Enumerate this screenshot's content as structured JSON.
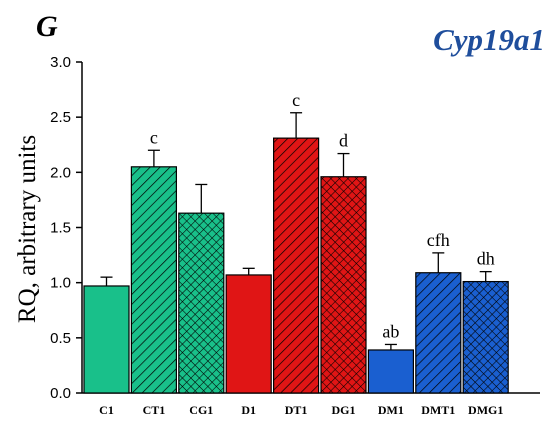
{
  "panel_label": "G",
  "gene_label": "Cyp19a1",
  "colors": {
    "gene": "#1f4e9c",
    "green": "#19c08a",
    "red": "#e01515",
    "blue": "#1a5fd0"
  },
  "chart_data": {
    "type": "bar",
    "title": "Cyp19a1",
    "xlabel": "",
    "ylabel": "RQ, arbitrary units",
    "ylim": [
      0,
      3.0
    ],
    "yticks": [
      "0.0",
      "0.5",
      "1.0",
      "1.5",
      "2.0",
      "2.5",
      "3.0"
    ],
    "grid": false,
    "legend": "none",
    "categories": [
      "C1",
      "CT1",
      "CG1",
      "D1",
      "DT1",
      "DG1",
      "DM1",
      "DMT1",
      "DMG1"
    ],
    "values": [
      0.97,
      2.05,
      1.63,
      1.07,
      2.31,
      1.96,
      0.39,
      1.09,
      1.01
    ],
    "errors": [
      0.08,
      0.15,
      0.26,
      0.06,
      0.23,
      0.21,
      0.05,
      0.18,
      0.09
    ],
    "significance": [
      "",
      "c",
      "",
      "",
      "c",
      "d",
      "ab",
      "cfh",
      "dh"
    ],
    "fills": [
      "green",
      "green",
      "green",
      "red",
      "red",
      "red",
      "blue",
      "blue",
      "blue"
    ],
    "patterns": [
      "solid",
      "diagonal",
      "crosshatch",
      "solid",
      "diagonal",
      "crosshatch",
      "solid",
      "diagonal",
      "crosshatch"
    ]
  }
}
